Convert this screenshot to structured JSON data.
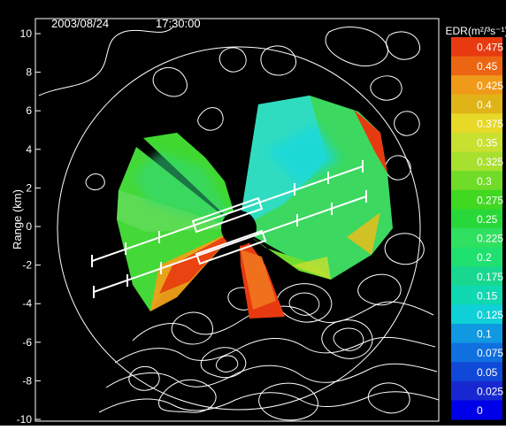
{
  "header": {
    "date": "2003/08/24",
    "time": "17:30:00"
  },
  "colorbar": {
    "title": "EDR(m²/³s⁻¹)",
    "labels": [
      "0.475",
      "0.45",
      "0.425",
      "0.4",
      "0.375",
      "0.35",
      "0.325",
      "0.3",
      "0.275",
      "0.25",
      "0.225",
      "0.2",
      "0.175",
      "0.15",
      "0.125",
      "0.1",
      "0.075",
      "0.05",
      "0.025",
      "0"
    ],
    "colors": [
      "#e83a10",
      "#ec6512",
      "#f09a1a",
      "#e0b418",
      "#e8d828",
      "#c8e030",
      "#a8e030",
      "#70dc28",
      "#40d820",
      "#28d838",
      "#30e060",
      "#20e070",
      "#18d890",
      "#10d8b0",
      "#10d0d8",
      "#1098e0",
      "#1070e0",
      "#1048d8",
      "#1828d0",
      "#0000e8"
    ]
  },
  "chart_data": {
    "type": "heatmap",
    "title": "",
    "xlabel": "",
    "ylabel": "Range (km)",
    "ylim": [
      -10,
      10
    ],
    "y_ticks": [
      "10",
      "8",
      "6",
      "4",
      "2",
      "0",
      "-2",
      "-4",
      "-6",
      "-8",
      "-10"
    ],
    "colorbar_range": [
      0,
      0.475
    ],
    "colors": {
      "background": "#000000",
      "contour": "#ffffff",
      "range_ring": "#ffffff"
    }
  }
}
